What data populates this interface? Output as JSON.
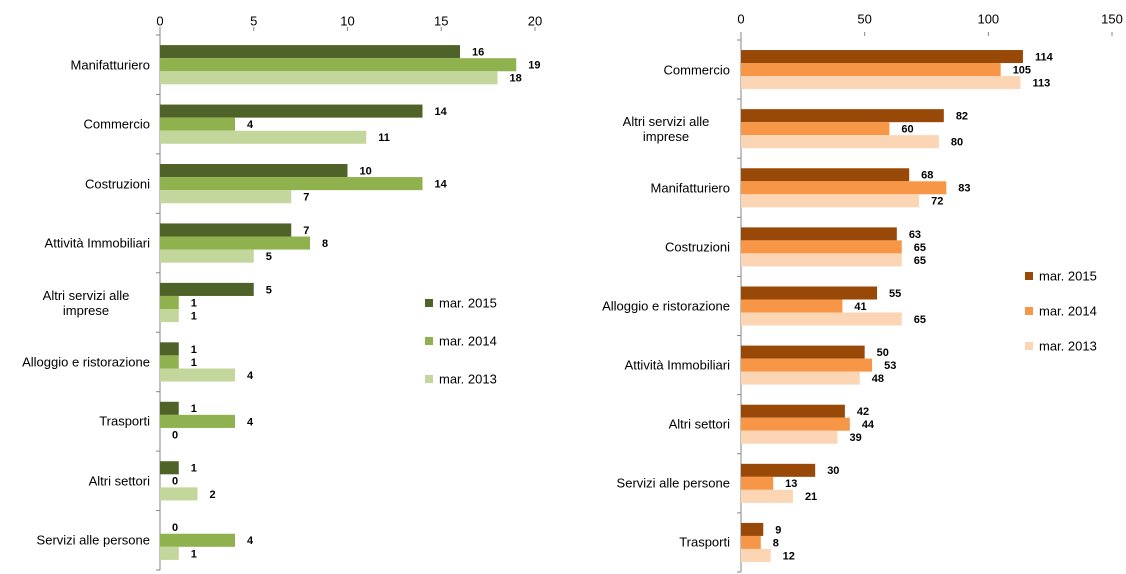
{
  "chart_data": [
    {
      "type": "bar",
      "orientation": "horizontal",
      "categories": [
        "Manifatturiero",
        "Commercio",
        "Costruzioni",
        "Attività Immobiliari",
        "Altri servizi alle imprese",
        "Alloggio e ristorazione",
        "Trasporti",
        "Altri settori",
        "Servizi alle persone"
      ],
      "series": [
        {
          "name": "mar. 2015",
          "color": "#4f6228",
          "values": [
            16,
            14,
            10,
            7,
            5,
            1,
            1,
            1,
            0
          ]
        },
        {
          "name": "mar. 2014",
          "color": "#8fb24f",
          "values": [
            19,
            4,
            14,
            8,
            1,
            1,
            4,
            0,
            4
          ]
        },
        {
          "name": "mar. 2013",
          "color": "#c3d69b",
          "values": [
            18,
            11,
            7,
            5,
            1,
            4,
            0,
            2,
            1
          ]
        }
      ],
      "xlim": [
        0,
        20
      ],
      "xticks": [
        0,
        5,
        10,
        15,
        20
      ],
      "legend": "right"
    },
    {
      "type": "bar",
      "orientation": "horizontal",
      "categories": [
        "Commercio",
        "Altri servizi alle imprese",
        "Manifatturiero",
        "Costruzioni",
        "Alloggio e ristorazione",
        "Attività Immobiliari",
        "Altri settori",
        "Servizi alle persone",
        "Trasporti"
      ],
      "series": [
        {
          "name": "mar. 2015",
          "color": "#984807",
          "values": [
            114,
            82,
            68,
            63,
            55,
            50,
            42,
            30,
            9
          ]
        },
        {
          "name": "mar. 2014",
          "color": "#f79646",
          "values": [
            105,
            60,
            83,
            65,
            41,
            53,
            44,
            13,
            8
          ]
        },
        {
          "name": "mar. 2013",
          "color": "#fcd5b5",
          "values": [
            113,
            80,
            72,
            65,
            65,
            48,
            39,
            21,
            12
          ]
        }
      ],
      "xlim": [
        0,
        150
      ],
      "xticks": [
        0,
        50,
        100,
        150
      ],
      "legend": "right"
    }
  ]
}
